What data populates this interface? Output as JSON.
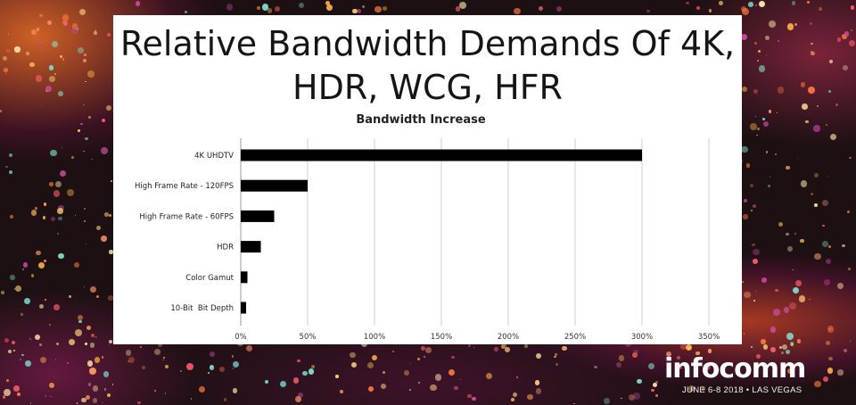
{
  "slide": {
    "title_line1": "Relative Bandwidth Demands Of 4K,",
    "title_line2": "HDR, WCG, HFR"
  },
  "branding": {
    "name": "infocomm",
    "tagline": "JUNE 6-8 2018 • LAS VEGAS"
  },
  "chart_data": {
    "type": "bar",
    "orientation": "horizontal",
    "title": "Bandwidth Increase",
    "xlabel": "",
    "ylabel": "",
    "categories": [
      "4K UHDTV",
      "High Frame Rate - 120FPS",
      "High Frame Rate - 60FPS",
      "HDR",
      "Color Gamut",
      "10-Bit  Bit Depth"
    ],
    "values": [
      300,
      50,
      25,
      15,
      5,
      4
    ],
    "unit": "%",
    "xlim": [
      0,
      350
    ],
    "xticks": [
      0,
      50,
      100,
      150,
      200,
      250,
      300,
      350
    ],
    "xtick_labels": [
      "0%",
      "50%",
      "100%",
      "150%",
      "200%",
      "250%",
      "300%",
      "350%"
    ],
    "grid": "vertical",
    "legend": "none",
    "bar_color": "#000000",
    "grid_color": "#cfcfcf"
  }
}
